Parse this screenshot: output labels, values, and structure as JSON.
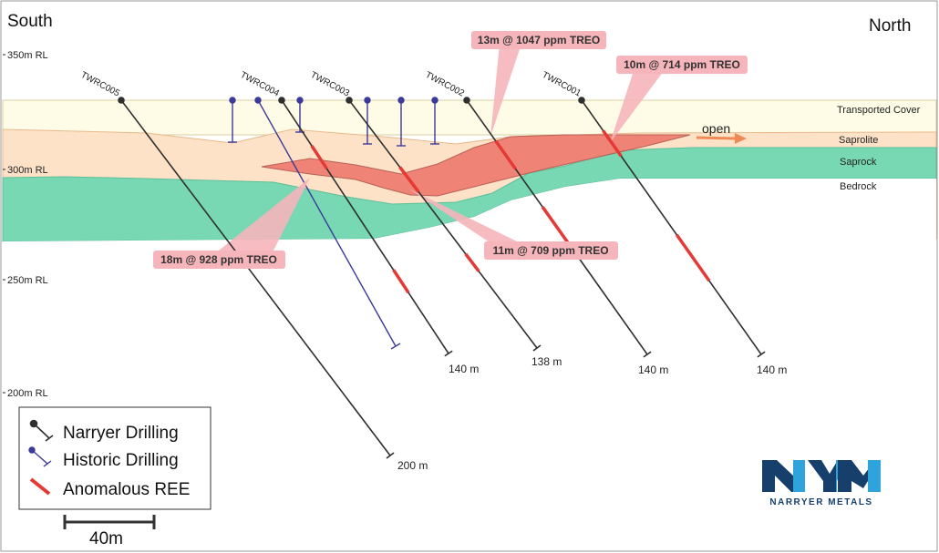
{
  "headers": {
    "south": "South",
    "north": "North"
  },
  "rl_labels": [
    "350m RL",
    "300m RL",
    "250m RL",
    "200m RL"
  ],
  "layers": [
    "Transported Cover",
    "Saprolite",
    "Saprock",
    "Bedrock"
  ],
  "open_label": "open",
  "holes": [
    {
      "name": "TWRC005",
      "depth": "200 m"
    },
    {
      "name": "TWRC004",
      "depth": "140 m"
    },
    {
      "name": "TWRC003",
      "depth": "138 m"
    },
    {
      "name": "TWRC002",
      "depth": "140 m"
    },
    {
      "name": "TWRC001",
      "depth": "140 m"
    }
  ],
  "intercepts": [
    "13m @ 1047 ppm TREO",
    "10m @ 714 ppm TREO",
    "18m @ 928 ppm TREO",
    "11m @ 709 ppm TREO"
  ],
  "legend": {
    "narryer": "Narryer Drilling",
    "historic": "Historic Drilling",
    "anomalous": "Anomalous REE"
  },
  "scale_bar": "40m",
  "logo": {
    "wordmark": "NYM",
    "company": "NARRYER METALS"
  },
  "colors": {
    "transported_cover": "#fefce6",
    "saprolite": "#fde2c7",
    "saprock": "#79d8b4",
    "ree_zone": "#ef7f72",
    "anomalous_red": "#e53935",
    "callout": "#f5b5ba",
    "narryer_hole": "#2f2f2f",
    "historic_hole": "#3a3a9a",
    "logo_dark": "#163f6c",
    "logo_light": "#2ea3dc",
    "open_arrow": "#ef8a57"
  }
}
